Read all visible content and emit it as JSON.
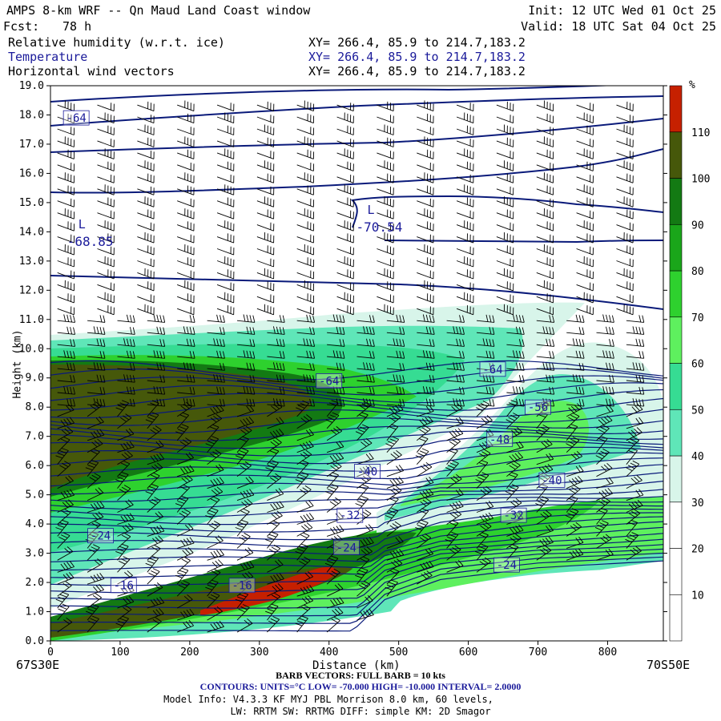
{
  "header": {
    "title": "AMPS 8-km WRF -- Qn Maud Land Coast window",
    "init": "Init: 12 UTC Wed 01 Oct 25",
    "fcst_label": "Fcst:",
    "fcst_value": "78 h",
    "valid": "Valid: 18 UTC Sat 04 Oct 25",
    "fields": [
      {
        "name": "Relative humidity (w.r.t. ice)",
        "xy": "XY= 266.4, 85.9 to 214.7,183.2"
      },
      {
        "name": "Temperature",
        "xy": "XY= 266.4, 85.9 to 214.7,183.2"
      },
      {
        "name": "Horizontal wind vectors",
        "xy": "XY= 266.4, 85.9 to 214.7,183.2"
      }
    ]
  },
  "colorbar": {
    "unit": "%",
    "ticks": [
      "110",
      "100",
      "90",
      "80",
      "70",
      "60",
      "50",
      "40",
      "30",
      "20",
      "10"
    ],
    "colors": [
      "#ffffff",
      "#ffffff",
      "#ffffff",
      "#d8f5ea",
      "#5fe6b8",
      "#36dc93",
      "#5ef05e",
      "#2ed12e",
      "#1aa61a",
      "#137a13",
      "#46580a",
      "#c62000"
    ]
  },
  "axes": {
    "ylabel": "Height (km)",
    "xlabel": "Distance (km)",
    "left_corner": "67S30E",
    "right_corner": "70S50E"
  },
  "footer": {
    "barb": "BARB VECTORS: FULL BARB = 10 kts",
    "contours": "CONTOURS: UNITS=°C LOW= -70.000 HIGH= -10.000 INTERVAL= 2.0000",
    "model": "Model Info: V4.3.3 KF MYJ PBL Morrison 8.0 km, 60 levels,",
    "phys": "LW: RRTM SW: RRTMG DIFF: simple KM: 2D Smagor"
  },
  "chart_data": {
    "type": "contour",
    "x": {
      "label": "Distance (km)",
      "range": [
        0,
        880
      ],
      "ticks": [
        0,
        100,
        200,
        300,
        400,
        500,
        600,
        700,
        800
      ]
    },
    "y": {
      "label": "Height (km)",
      "range": [
        0,
        19
      ],
      "ticks": [
        0,
        1,
        2,
        3,
        4,
        5,
        6,
        7,
        8,
        9,
        10,
        11,
        12,
        13,
        14,
        15,
        16,
        17,
        18,
        19
      ]
    },
    "shaded_field": "Relative humidity (w.r.t. ice)",
    "contour_field": "Temperature",
    "contour_interval": 2,
    "contour_low": -70,
    "contour_high": -10,
    "contour_labels": [
      {
        "text": "-64",
        "x": 37,
        "y": 17.9
      },
      {
        "text": "-64",
        "x": 400,
        "y": 8.9
      },
      {
        "text": "-64",
        "x": 635,
        "y": 9.3
      },
      {
        "text": "-56",
        "x": 700,
        "y": 8.0
      },
      {
        "text": "-48",
        "x": 645,
        "y": 6.9
      },
      {
        "text": "-40",
        "x": 455,
        "y": 5.8
      },
      {
        "text": "-40",
        "x": 720,
        "y": 5.5
      },
      {
        "text": "-32",
        "x": 430,
        "y": 4.3
      },
      {
        "text": "-32",
        "x": 665,
        "y": 4.3
      },
      {
        "text": "-24",
        "x": 72,
        "y": 3.6
      },
      {
        "text": "-24",
        "x": 425,
        "y": 3.2
      },
      {
        "text": "-24",
        "x": 655,
        "y": 2.6
      },
      {
        "text": "-16",
        "x": 105,
        "y": 1.9
      },
      {
        "text": "-16",
        "x": 275,
        "y": 1.9
      }
    ],
    "extrema": [
      {
        "symbol": "L",
        "value": "-68.85",
        "x": 40,
        "y": 13.9
      },
      {
        "symbol": "L",
        "value": "-70.54",
        "x": 455,
        "y": 14.4
      }
    ]
  }
}
